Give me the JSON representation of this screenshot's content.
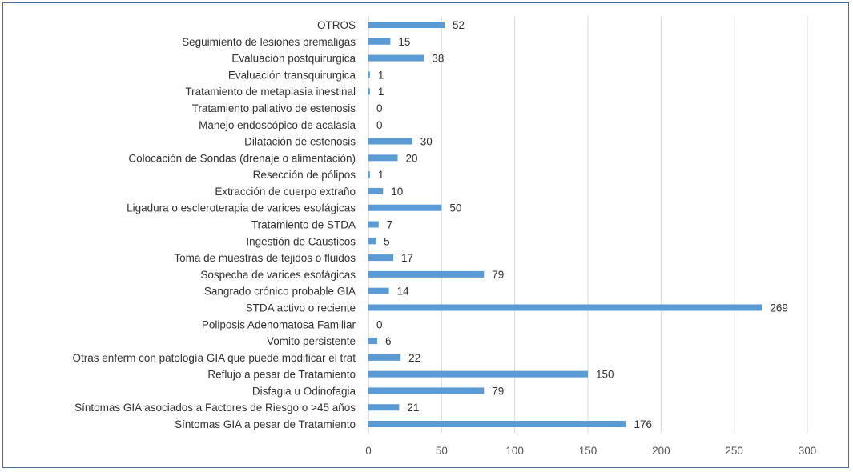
{
  "chart_data": {
    "type": "bar",
    "orientation": "horizontal",
    "categories": [
      "OTROS",
      "Seguimiento de lesiones premaligas",
      "Evaluación postquirurgica",
      "Evaluación transquirurgica",
      "Tratamiento de metaplasia inestinal",
      "Tratamiento paliativo de estenosis",
      "Manejo endoscópico de acalasia",
      "Dilatación de estenosis",
      "Colocación de Sondas (drenaje o alimentación)",
      "Resección de pólipos",
      "Extracción de cuerpo extraño",
      "Ligadura o escleroterapia de varices esofágicas",
      "Tratamiento de STDA",
      "Ingestión de Causticos",
      "Toma de muestras de tejidos o fluidos",
      "Sospecha de varices esofágicas",
      "Sangrado crónico probable GIA",
      "STDA activo o reciente",
      "Poliposis Adenomatosa Familiar",
      "Vomito persistente",
      "Otras enferm con patología GIA que puede modificar el trat",
      "Reflujo a pesar de Tratamiento",
      "Disfagia u Odinofagia",
      "Síntomas GIA asociados a Factores de Riesgo o >45 años",
      "Síntomas GIA a pesar de Tratamiento"
    ],
    "values": [
      52,
      15,
      38,
      1,
      1,
      0,
      0,
      30,
      20,
      1,
      10,
      50,
      7,
      5,
      17,
      79,
      14,
      269,
      0,
      6,
      22,
      150,
      79,
      21,
      176
    ],
    "xlim": [
      0,
      300
    ],
    "x_ticks": [
      0,
      50,
      100,
      150,
      200,
      250,
      300
    ],
    "grid": "vertical",
    "data_labels": true,
    "title": "",
    "xlabel": "",
    "ylabel": "",
    "bar_color": "#5b9bd5",
    "grid_color": "#d9d9d9"
  }
}
